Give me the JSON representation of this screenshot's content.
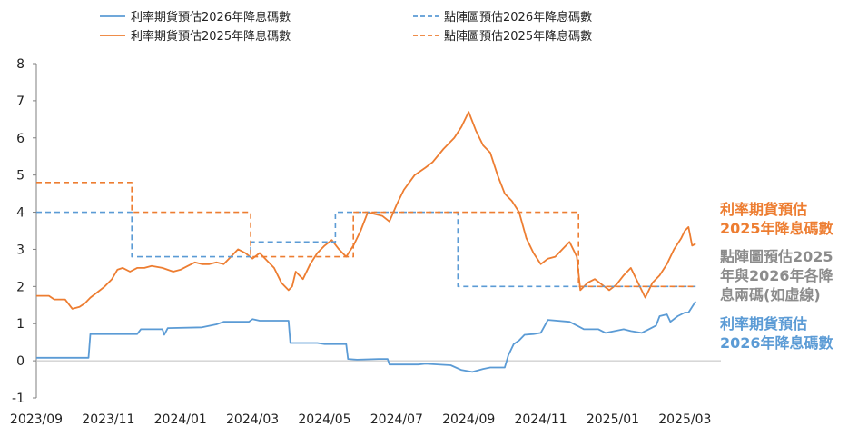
{
  "chart_data": {
    "type": "line",
    "title": "",
    "xlabel": "",
    "ylabel": "",
    "ylim": [
      -1,
      8
    ],
    "yticks": [
      -1,
      0,
      1,
      2,
      3,
      4,
      5,
      6,
      7,
      8
    ],
    "x_ticks": [
      "2023/09",
      "2023/11",
      "2024/01",
      "2024/03",
      "2024/05",
      "2024/07",
      "2024/09",
      "2024/11",
      "2025/01",
      "2025/03"
    ],
    "x_range_months": [
      0,
      19
    ],
    "grid": false,
    "legend_position": "top",
    "series": [
      {
        "name": "利率期貨預估2026年降息碼數",
        "style": "solid",
        "color": "#5b9bd5",
        "points": [
          [
            0.0,
            0.08
          ],
          [
            1.45,
            0.08
          ],
          [
            1.5,
            0.72
          ],
          [
            2.8,
            0.72
          ],
          [
            2.9,
            0.85
          ],
          [
            3.5,
            0.85
          ],
          [
            3.55,
            0.7
          ],
          [
            3.65,
            0.88
          ],
          [
            4.6,
            0.9
          ],
          [
            5.0,
            0.98
          ],
          [
            5.2,
            1.05
          ],
          [
            5.9,
            1.05
          ],
          [
            6.0,
            1.12
          ],
          [
            6.2,
            1.08
          ],
          [
            7.0,
            1.08
          ],
          [
            7.05,
            0.48
          ],
          [
            7.8,
            0.48
          ],
          [
            8.0,
            0.45
          ],
          [
            8.6,
            0.45
          ],
          [
            8.65,
            0.05
          ],
          [
            8.9,
            0.03
          ],
          [
            9.5,
            0.05
          ],
          [
            9.75,
            0.05
          ],
          [
            9.8,
            -0.1
          ],
          [
            10.6,
            -0.1
          ],
          [
            10.8,
            -0.08
          ],
          [
            11.5,
            -0.12
          ],
          [
            11.8,
            -0.25
          ],
          [
            12.1,
            -0.3
          ],
          [
            12.4,
            -0.22
          ],
          [
            12.6,
            -0.18
          ],
          [
            13.0,
            -0.18
          ],
          [
            13.1,
            0.15
          ],
          [
            13.25,
            0.45
          ],
          [
            13.4,
            0.55
          ],
          [
            13.55,
            0.7
          ],
          [
            13.8,
            0.72
          ],
          [
            14.0,
            0.75
          ],
          [
            14.2,
            1.1
          ],
          [
            14.8,
            1.05
          ],
          [
            15.0,
            0.95
          ],
          [
            15.2,
            0.85
          ],
          [
            15.6,
            0.85
          ],
          [
            15.8,
            0.75
          ],
          [
            16.3,
            0.85
          ],
          [
            16.5,
            0.8
          ],
          [
            16.8,
            0.75
          ],
          [
            17.0,
            0.85
          ],
          [
            17.2,
            0.95
          ],
          [
            17.3,
            1.2
          ],
          [
            17.5,
            1.25
          ],
          [
            17.6,
            1.05
          ],
          [
            17.8,
            1.2
          ],
          [
            18.0,
            1.3
          ],
          [
            18.1,
            1.3
          ],
          [
            18.3,
            1.6
          ]
        ]
      },
      {
        "name": "利率期貨預估2025年降息碼數",
        "style": "solid",
        "color": "#ed7d31",
        "points": [
          [
            0.0,
            1.75
          ],
          [
            0.35,
            1.75
          ],
          [
            0.5,
            1.65
          ],
          [
            0.8,
            1.65
          ],
          [
            1.0,
            1.4
          ],
          [
            1.2,
            1.45
          ],
          [
            1.35,
            1.55
          ],
          [
            1.5,
            1.7
          ],
          [
            1.7,
            1.85
          ],
          [
            1.9,
            2.0
          ],
          [
            2.1,
            2.2
          ],
          [
            2.25,
            2.45
          ],
          [
            2.4,
            2.5
          ],
          [
            2.6,
            2.4
          ],
          [
            2.8,
            2.5
          ],
          [
            3.0,
            2.5
          ],
          [
            3.2,
            2.55
          ],
          [
            3.5,
            2.5
          ],
          [
            3.8,
            2.4
          ],
          [
            4.0,
            2.45
          ],
          [
            4.2,
            2.55
          ],
          [
            4.4,
            2.65
          ],
          [
            4.6,
            2.6
          ],
          [
            4.8,
            2.6
          ],
          [
            5.0,
            2.65
          ],
          [
            5.2,
            2.6
          ],
          [
            5.4,
            2.8
          ],
          [
            5.6,
            3.0
          ],
          [
            5.8,
            2.9
          ],
          [
            6.0,
            2.75
          ],
          [
            6.2,
            2.9
          ],
          [
            6.4,
            2.7
          ],
          [
            6.6,
            2.5
          ],
          [
            6.8,
            2.1
          ],
          [
            7.0,
            1.9
          ],
          [
            7.1,
            2.0
          ],
          [
            7.2,
            2.4
          ],
          [
            7.4,
            2.2
          ],
          [
            7.6,
            2.6
          ],
          [
            7.8,
            2.9
          ],
          [
            8.0,
            3.1
          ],
          [
            8.2,
            3.25
          ],
          [
            8.4,
            3.0
          ],
          [
            8.6,
            2.8
          ],
          [
            8.8,
            3.1
          ],
          [
            9.0,
            3.5
          ],
          [
            9.2,
            4.0
          ],
          [
            9.4,
            3.95
          ],
          [
            9.6,
            3.9
          ],
          [
            9.8,
            3.75
          ],
          [
            10.0,
            4.2
          ],
          [
            10.2,
            4.6
          ],
          [
            10.5,
            5.0
          ],
          [
            10.8,
            5.2
          ],
          [
            11.0,
            5.35
          ],
          [
            11.3,
            5.7
          ],
          [
            11.6,
            6.0
          ],
          [
            11.8,
            6.3
          ],
          [
            12.0,
            6.7
          ],
          [
            12.2,
            6.2
          ],
          [
            12.4,
            5.8
          ],
          [
            12.6,
            5.6
          ],
          [
            12.8,
            5.0
          ],
          [
            13.0,
            4.5
          ],
          [
            13.2,
            4.3
          ],
          [
            13.4,
            4.0
          ],
          [
            13.6,
            3.3
          ],
          [
            13.8,
            2.9
          ],
          [
            14.0,
            2.6
          ],
          [
            14.2,
            2.75
          ],
          [
            14.4,
            2.8
          ],
          [
            14.6,
            3.0
          ],
          [
            14.8,
            3.2
          ],
          [
            15.0,
            2.8
          ],
          [
            15.1,
            1.9
          ],
          [
            15.3,
            2.1
          ],
          [
            15.5,
            2.2
          ],
          [
            15.7,
            2.05
          ],
          [
            15.9,
            1.9
          ],
          [
            16.1,
            2.05
          ],
          [
            16.3,
            2.3
          ],
          [
            16.5,
            2.5
          ],
          [
            16.7,
            2.1
          ],
          [
            16.9,
            1.7
          ],
          [
            17.1,
            2.1
          ],
          [
            17.3,
            2.3
          ],
          [
            17.5,
            2.6
          ],
          [
            17.7,
            3.0
          ],
          [
            17.9,
            3.3
          ],
          [
            18.0,
            3.5
          ],
          [
            18.1,
            3.6
          ],
          [
            18.2,
            3.1
          ],
          [
            18.3,
            3.15
          ]
        ]
      },
      {
        "name": "點陣圖預估2026年降息碼數",
        "style": "dashed",
        "color": "#5b9bd5",
        "points": [
          [
            0.0,
            4.0
          ],
          [
            2.65,
            4.0
          ],
          [
            2.65,
            2.8
          ],
          [
            5.95,
            2.8
          ],
          [
            5.95,
            3.2
          ],
          [
            8.3,
            3.2
          ],
          [
            8.3,
            4.0
          ],
          [
            11.7,
            4.0
          ],
          [
            11.7,
            2.0
          ],
          [
            18.3,
            2.0
          ]
        ]
      },
      {
        "name": "點陣圖預估2025年降息碼數",
        "style": "dashed",
        "color": "#ed7d31",
        "points": [
          [
            0.0,
            4.8
          ],
          [
            2.65,
            4.8
          ],
          [
            2.65,
            4.0
          ],
          [
            5.95,
            4.0
          ],
          [
            5.95,
            2.8
          ],
          [
            8.8,
            2.8
          ],
          [
            8.8,
            4.0
          ],
          [
            15.05,
            4.0
          ],
          [
            15.05,
            2.0
          ],
          [
            18.3,
            2.0
          ]
        ]
      }
    ],
    "annotations": [
      {
        "lines": [
          "利率期貨預估",
          "2025年降息碼數"
        ],
        "color": "#ed7d31"
      },
      {
        "lines": [
          "點陣圖預估2025",
          "年與2026年各降",
          "息兩碼(如虛線)"
        ],
        "color": "#8c8c8c"
      },
      {
        "lines": [
          "利率期貨預估",
          "2026年降息碼數"
        ],
        "color": "#5b9bd5"
      }
    ]
  }
}
